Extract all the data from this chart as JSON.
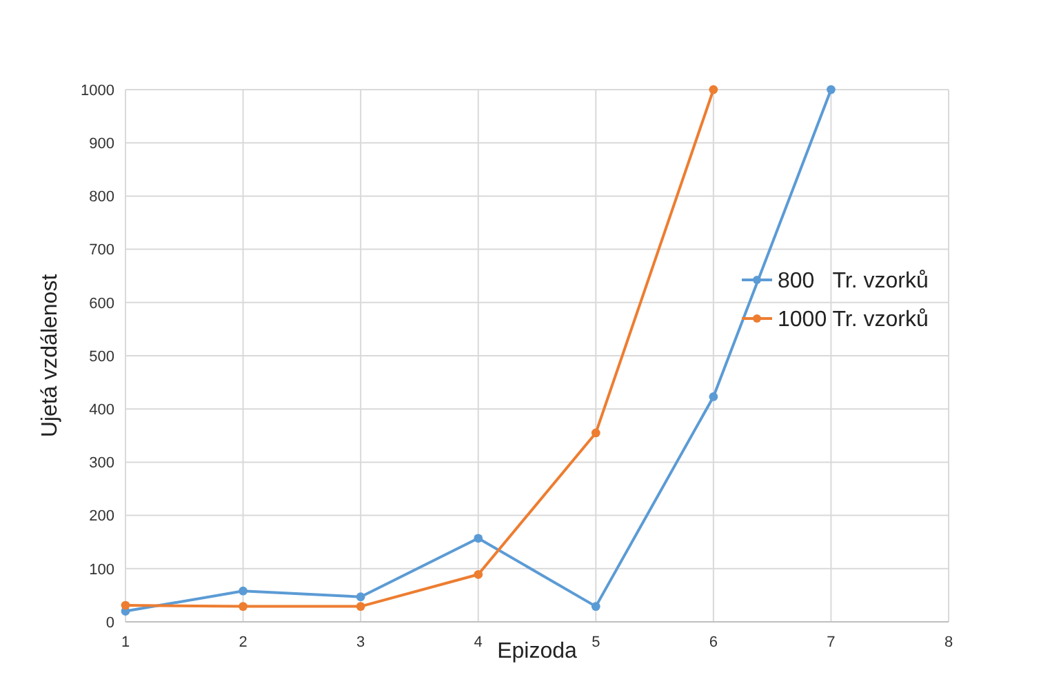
{
  "chart_data": {
    "type": "line",
    "xlabel": "Epizoda",
    "ylabel": "Ujetá vzdálenost",
    "xlim": [
      1,
      8
    ],
    "xticks": [
      1,
      2,
      3,
      4,
      5,
      6,
      7,
      8
    ],
    "ylim": [
      0,
      1000
    ],
    "yticks": [
      0,
      100,
      200,
      300,
      400,
      500,
      600,
      700,
      800,
      900,
      1000
    ],
    "grid": true,
    "legend": "right",
    "marker": "circle",
    "series": [
      {
        "name": "800   Tr. vzorků",
        "color": "#5b9bd5",
        "x": [
          1,
          2,
          3,
          4,
          5,
          6,
          7
        ],
        "values": [
          20,
          58,
          47,
          157,
          29,
          423,
          1000
        ]
      },
      {
        "name": "1000 Tr. vzorků",
        "color": "#ed7d31",
        "x": [
          1,
          2,
          3,
          4,
          5,
          6
        ],
        "values": [
          31,
          29,
          29,
          89,
          355,
          1000
        ]
      }
    ]
  }
}
